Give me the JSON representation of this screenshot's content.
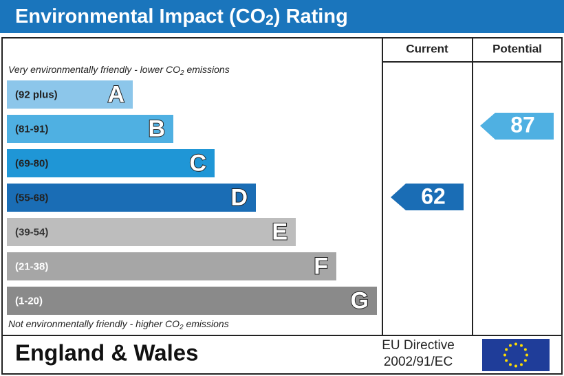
{
  "header": {
    "title": [
      "Environmental Impact (CO",
      "2",
      ") Rating"
    ]
  },
  "columns": [
    "Current",
    "Potential"
  ],
  "top_note": [
    "Very environmentally friendly - lower CO",
    "2",
    " emissions"
  ],
  "bottom_note": [
    "Not environmentally friendly - higher CO",
    "2",
    " emissions"
  ],
  "bands": [
    {
      "range": "(92 plus)",
      "letter": "A"
    },
    {
      "range": "(81-91)",
      "letter": "B"
    },
    {
      "range": "(69-80)",
      "letter": "C"
    },
    {
      "range": "(55-68)",
      "letter": "D"
    },
    {
      "range": "(39-54)",
      "letter": "E"
    },
    {
      "range": "(21-38)",
      "letter": "F"
    },
    {
      "range": "(1-20)",
      "letter": "G"
    }
  ],
  "current": 62,
  "potential": 87,
  "footer": {
    "region": "England & Wales",
    "directive": [
      "EU Directive",
      "2002/91/EC"
    ]
  }
}
